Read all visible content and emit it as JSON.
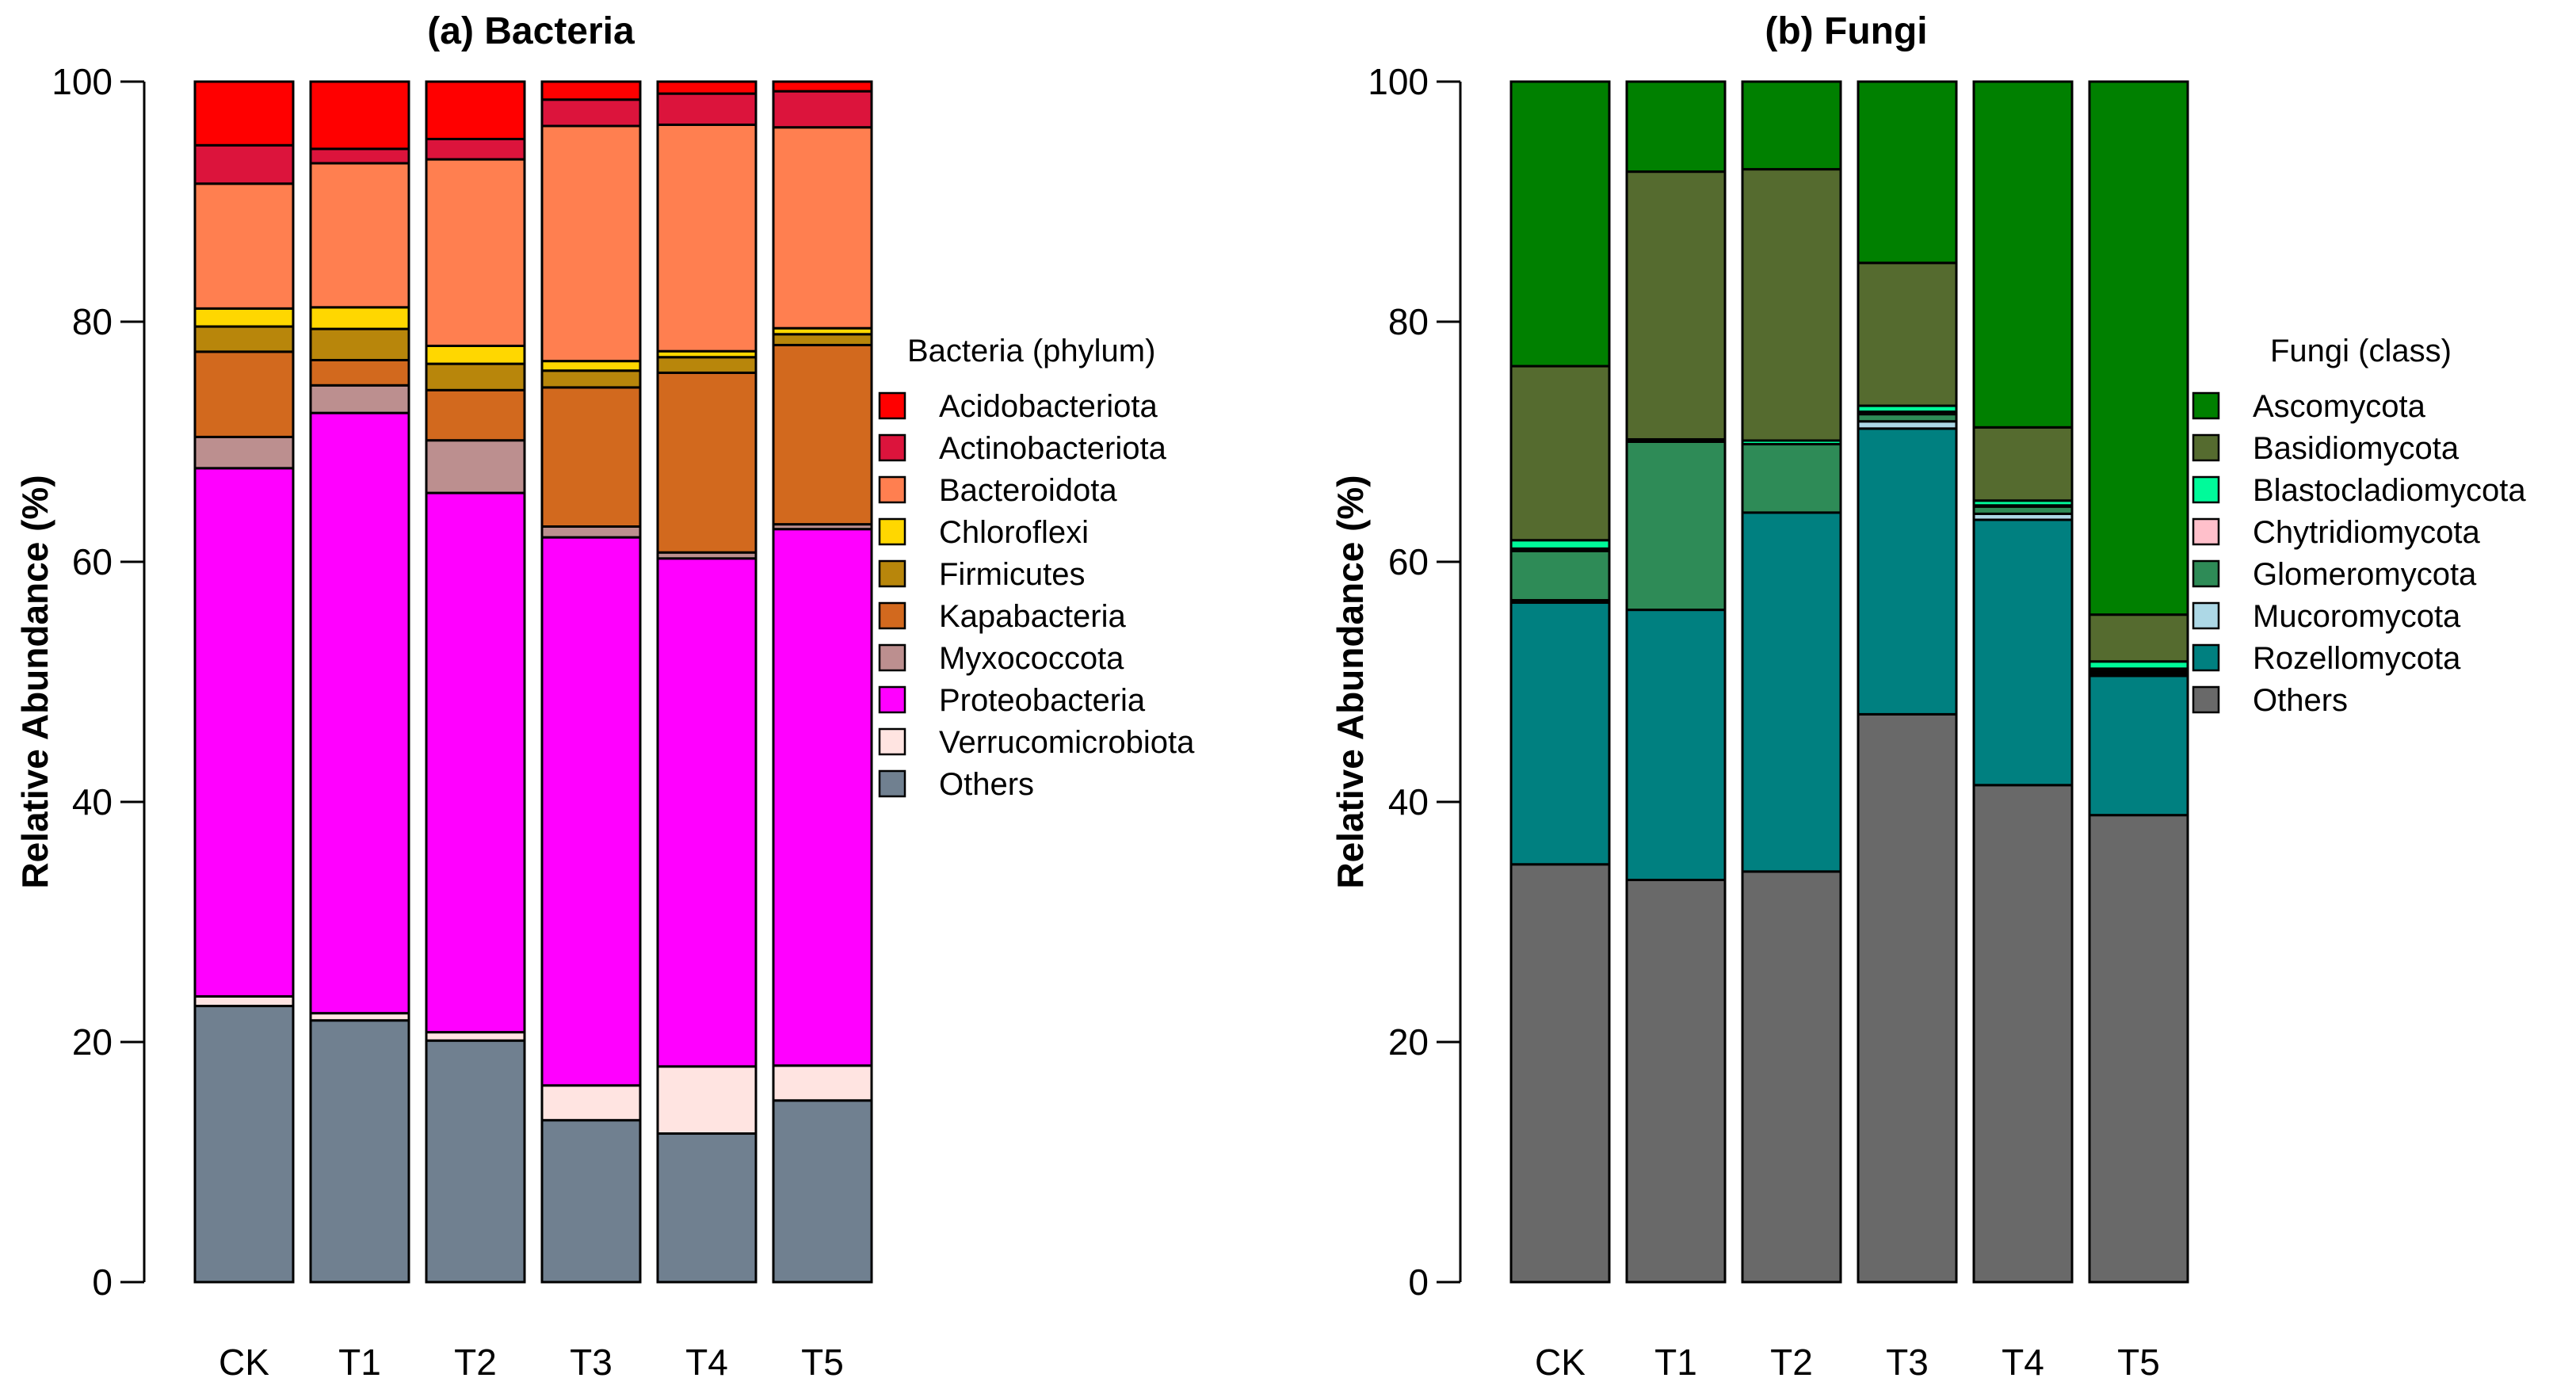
{
  "chart_data": [
    {
      "type": "bar",
      "stacked": true,
      "title": "(a) Bacteria",
      "xlabel": "",
      "ylabel": "Relative Abundance (%)",
      "ylim": [
        0,
        100
      ],
      "yticks": [
        "0",
        "20",
        "40",
        "60",
        "80",
        "100"
      ],
      "categories": [
        "CK",
        "T1",
        "T2",
        "T3",
        "T4",
        "T5"
      ],
      "legend_title": "Bacteria (phylum)",
      "legend_position": "right",
      "series": [
        {
          "name": "Others",
          "color": "#708090",
          "values": [
            23.0,
            21.8,
            20.2,
            13.5,
            12.4,
            15.1
          ]
        },
        {
          "name": "Verrucomicrobiota",
          "color": "#FFE4E1",
          "values": [
            0.8,
            0.6,
            0.7,
            2.9,
            5.6,
            2.9
          ]
        },
        {
          "name": "Proteobacteria",
          "color": "#FF00FF",
          "values": [
            44.0,
            50.0,
            45.1,
            45.7,
            42.4,
            44.6
          ]
        },
        {
          "name": "Myxococcota",
          "color": "#BC8F8F",
          "values": [
            2.6,
            2.3,
            4.4,
            0.9,
            0.5,
            0.4
          ]
        },
        {
          "name": "Kapabacteria",
          "color": "#D2691E",
          "values": [
            7.1,
            2.1,
            4.2,
            11.6,
            15.0,
            14.9
          ]
        },
        {
          "name": "Firmicutes",
          "color": "#B8860B",
          "values": [
            2.1,
            2.6,
            2.2,
            1.4,
            1.3,
            0.9
          ]
        },
        {
          "name": "Chloroflexi",
          "color": "#FFD700",
          "values": [
            1.5,
            1.8,
            1.5,
            0.8,
            0.5,
            0.5
          ]
        },
        {
          "name": "Bacteroidota",
          "color": "#FF7F50",
          "values": [
            10.4,
            12.0,
            15.6,
            19.6,
            18.9,
            16.7
          ]
        },
        {
          "name": "Actinobacteriota",
          "color": "#DC143C",
          "values": [
            3.2,
            1.2,
            1.7,
            2.2,
            2.6,
            3.0
          ]
        },
        {
          "name": "Acidobacteriota",
          "color": "#FF0000",
          "values": [
            5.3,
            5.6,
            4.8,
            1.5,
            1.0,
            0.8
          ]
        }
      ],
      "legend_order": [
        "Acidobacteriota",
        "Actinobacteriota",
        "Bacteroidota",
        "Chloroflexi",
        "Firmicutes",
        "Kapabacteria",
        "Myxococcota",
        "Proteobacteria",
        "Verrucomicrobiota",
        "Others"
      ]
    },
    {
      "type": "bar",
      "stacked": true,
      "title": "(b) Fungi",
      "xlabel": "",
      "ylabel": "Relative Abundance (%)",
      "ylim": [
        0,
        100
      ],
      "yticks": [
        "0",
        "20",
        "40",
        "60",
        "80",
        "100"
      ],
      "categories": [
        "CK",
        "T1",
        "T2",
        "T3",
        "T4",
        "T5"
      ],
      "legend_title": "Fungi (class)",
      "legend_position": "right",
      "series": [
        {
          "name": "Others",
          "color": "#696969",
          "values": [
            34.8,
            33.5,
            34.2,
            47.3,
            41.4,
            38.9
          ]
        },
        {
          "name": "Rozellomycota",
          "color": "#008080",
          "values": [
            21.8,
            22.5,
            29.9,
            23.8,
            22.1,
            11.6
          ]
        },
        {
          "name": "Mucoromycota",
          "color": "#ADD8E6",
          "values": [
            0.2,
            0.0,
            0.0,
            0.6,
            0.5,
            0.2
          ]
        },
        {
          "name": "Glomeromycota",
          "color": "#2E8B57",
          "values": [
            4.1,
            14.0,
            5.7,
            0.6,
            0.6,
            0.2
          ]
        },
        {
          "name": "Chytridiomycota",
          "color": "#FFC0CB",
          "values": [
            0.2,
            0.0,
            0.0,
            0.2,
            0.1,
            0.2
          ]
        },
        {
          "name": "Blastocladiomycota",
          "color": "#00FA9A",
          "values": [
            0.7,
            0.2,
            0.3,
            0.5,
            0.4,
            0.6
          ]
        },
        {
          "name": "Basidiomycota",
          "color": "#556B2F",
          "values": [
            14.5,
            22.3,
            22.6,
            11.9,
            6.1,
            3.9
          ]
        },
        {
          "name": "Ascomycota",
          "color": "#008000",
          "values": [
            23.7,
            7.5,
            7.3,
            15.1,
            28.8,
            44.4
          ]
        }
      ],
      "legend_order": [
        "Ascomycota",
        "Basidiomycota",
        "Blastocladiomycota",
        "Chytridiomycota",
        "Glomeromycota",
        "Mucoromycota",
        "Rozellomycota",
        "Others"
      ]
    }
  ]
}
